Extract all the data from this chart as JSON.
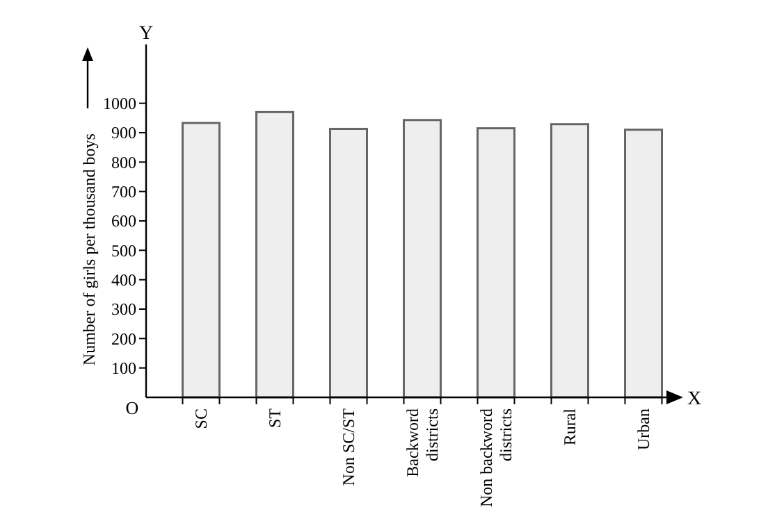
{
  "chart_data": {
    "type": "bar",
    "ylabel": "Number of girls per thousand boys",
    "categories": [
      "SC",
      "ST",
      "Non SC/ST",
      "Backword districts",
      "Non backword districts",
      "Rural",
      "Urban"
    ],
    "values": [
      933,
      970,
      913,
      943,
      915,
      929,
      910
    ],
    "color": "#eeeeee",
    "ylim": [
      0,
      1200
    ],
    "yticks": [
      100,
      200,
      300,
      400,
      500,
      600,
      700,
      800,
      900,
      1000
    ],
    "grid": false,
    "annotations": [
      "O",
      "X",
      "Y"
    ]
  }
}
